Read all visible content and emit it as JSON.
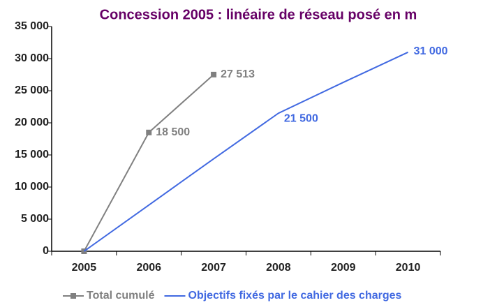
{
  "chart_data": {
    "type": "line",
    "title": "Concession 2005 : linéaire de réseau posé en m",
    "categories": [
      "2005",
      "2006",
      "2007",
      "2008",
      "2009",
      "2010"
    ],
    "series": [
      {
        "name": "Total cumulé",
        "color": "#808080",
        "marker": "square",
        "values": [
          0,
          18500,
          27513,
          null,
          null,
          null
        ],
        "value_labels": [
          null,
          "18 500",
          "27 513",
          null,
          null,
          null
        ]
      },
      {
        "name": "Objectifs fixés par le cahier des charges",
        "color": "#4169e1",
        "values": [
          0,
          7200,
          14400,
          21500,
          26300,
          31000
        ],
        "value_labels": [
          null,
          null,
          null,
          "21 500",
          null,
          "31 000"
        ]
      }
    ],
    "ylim": [
      0,
      35000
    ],
    "yticks": [
      0,
      {
        "value": 5000,
        "label": "5 000"
      },
      {
        "value": 10000,
        "label": "10 000"
      },
      {
        "value": 15000,
        "label": "15 000"
      },
      {
        "value": 20000,
        "label": "20 000"
      },
      {
        "value": 25000,
        "label": "25 000"
      },
      {
        "value": 30000,
        "label": "30 000"
      },
      {
        "value": 35000,
        "label": "35 000"
      }
    ],
    "legend": "bottom"
  }
}
